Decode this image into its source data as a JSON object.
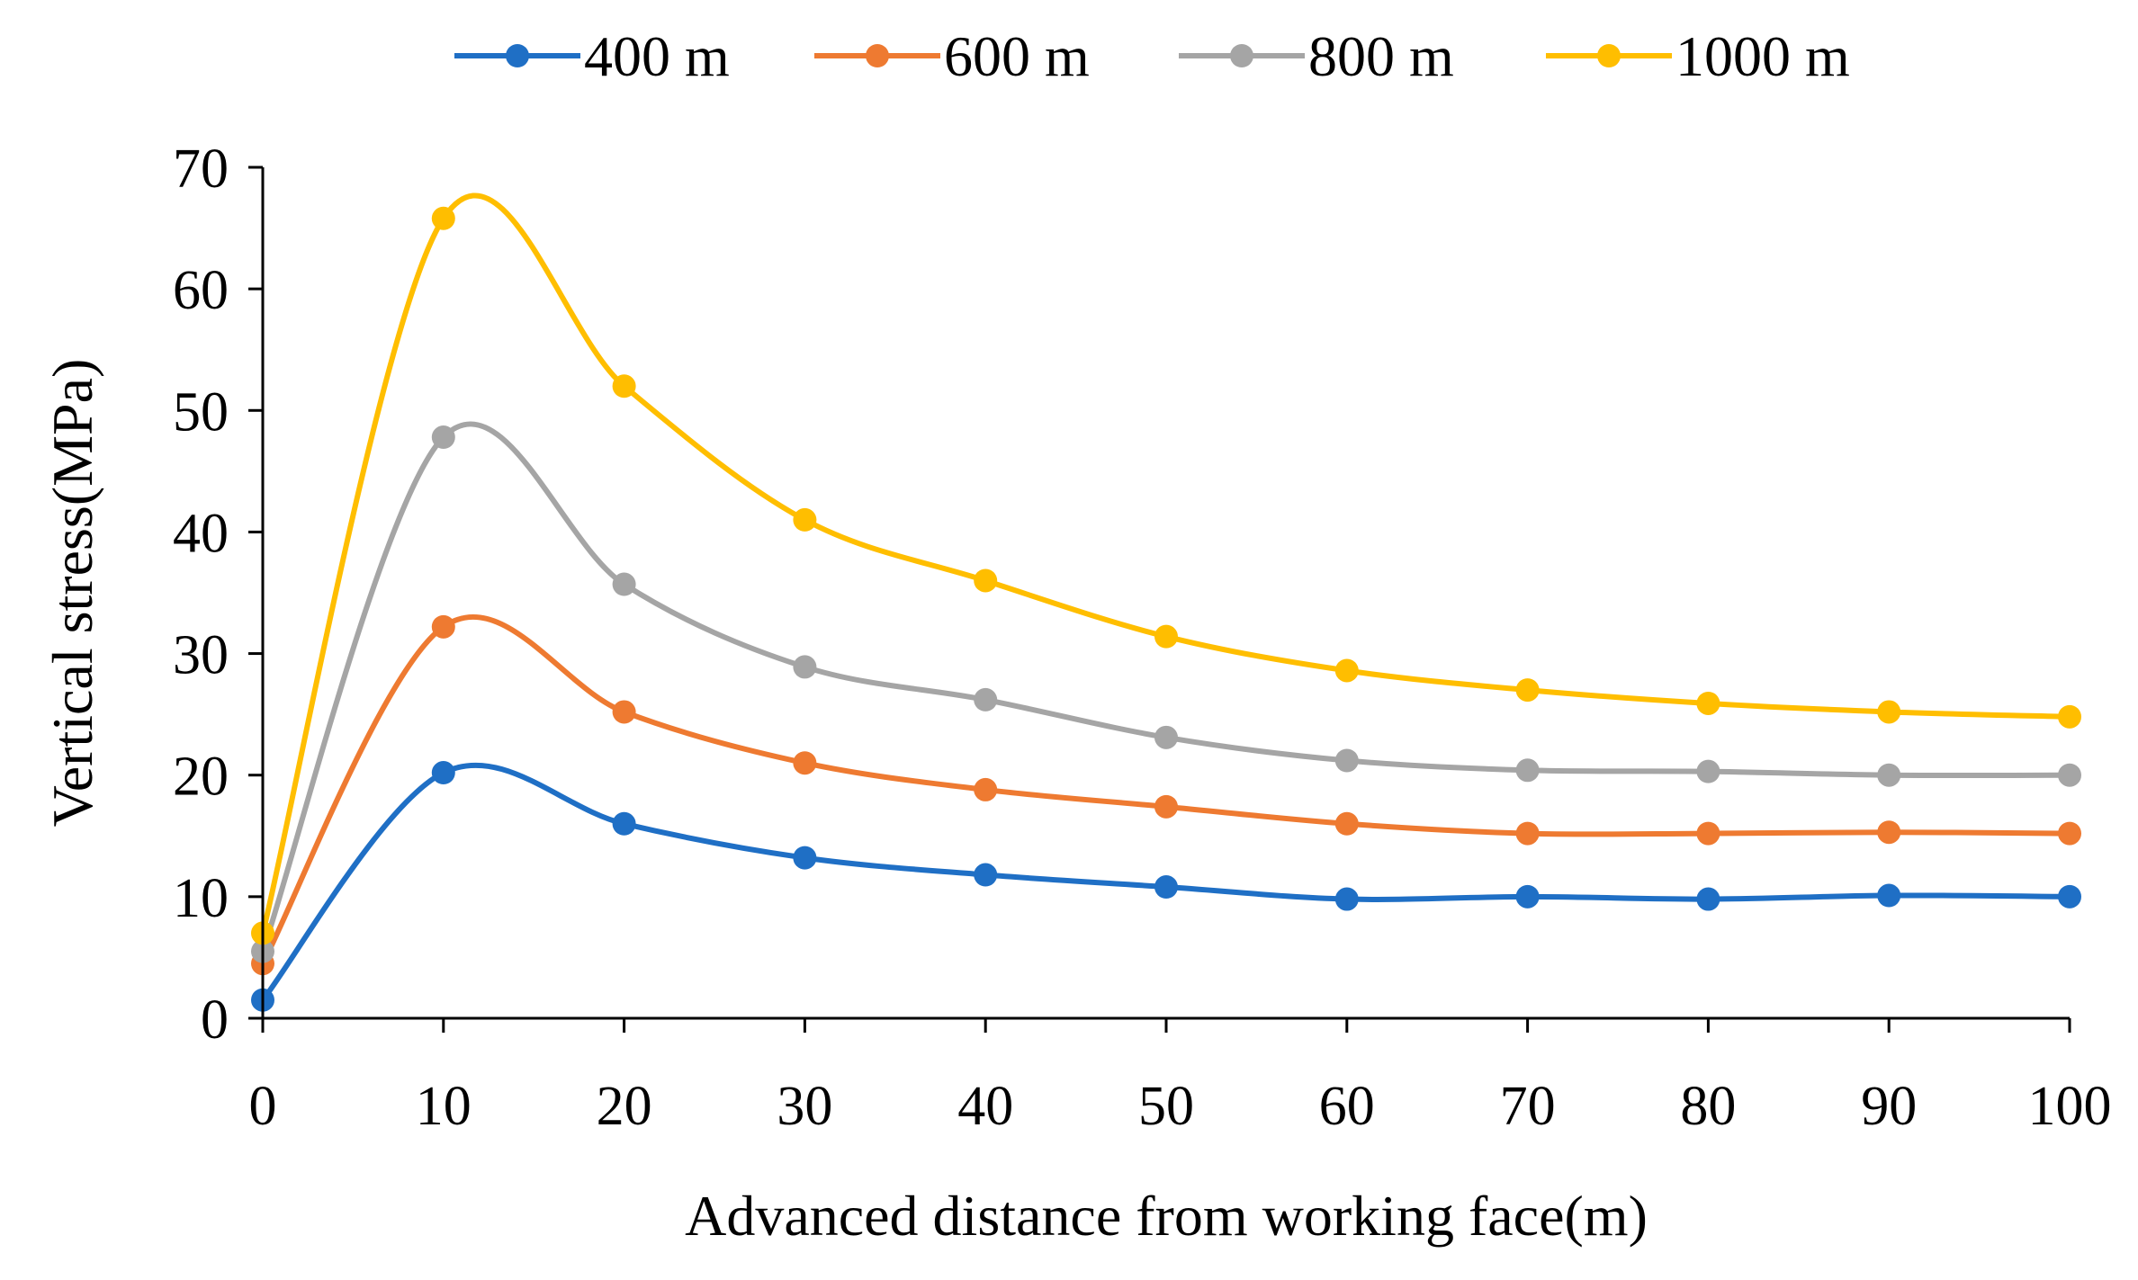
{
  "chart_data": {
    "type": "line",
    "title": "",
    "xlabel": "Advanced distance from working face(m)",
    "ylabel": "Vertical stress(MPa)",
    "x": [
      0,
      10,
      20,
      30,
      40,
      50,
      60,
      70,
      80,
      90,
      100
    ],
    "xlim": [
      0,
      100
    ],
    "ylim": [
      0,
      70
    ],
    "x_ticks": [
      0,
      10,
      20,
      30,
      40,
      50,
      60,
      70,
      80,
      90,
      100
    ],
    "y_ticks": [
      0,
      10,
      20,
      30,
      40,
      50,
      60,
      70
    ],
    "grid": false,
    "legend_position": "top",
    "smooth": true,
    "series": [
      {
        "name": "400 m",
        "color": "#1F6FC5",
        "values": [
          1.5,
          20.2,
          16.0,
          13.2,
          11.8,
          10.8,
          9.8,
          10.0,
          9.8,
          10.1,
          10.0
        ]
      },
      {
        "name": "600 m",
        "color": "#EE7A31",
        "values": [
          4.5,
          32.2,
          25.2,
          21.0,
          18.8,
          17.4,
          16.0,
          15.2,
          15.2,
          15.3,
          15.2
        ]
      },
      {
        "name": "800 m",
        "color": "#A5A5A5",
        "values": [
          5.5,
          47.8,
          35.7,
          28.9,
          26.2,
          23.1,
          21.2,
          20.4,
          20.3,
          20.0,
          20.0
        ]
      },
      {
        "name": "1000 m",
        "color": "#FFBE00",
        "values": [
          7.0,
          65.8,
          52.0,
          41.0,
          36.0,
          31.4,
          28.6,
          27.0,
          25.9,
          25.2,
          24.8
        ]
      }
    ]
  }
}
